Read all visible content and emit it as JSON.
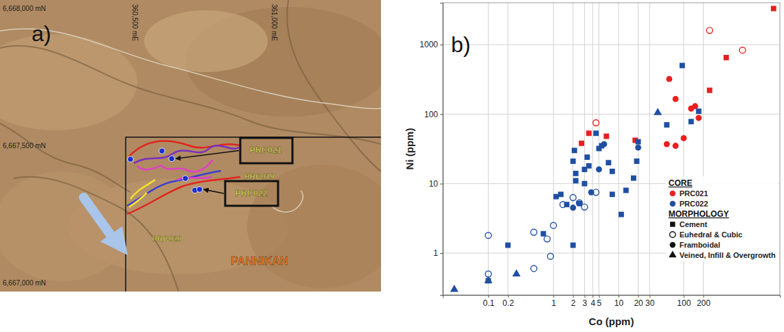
{
  "map": {
    "panel_label": "a)",
    "xlim": [
      360015,
      361382
    ],
    "ylim": [
      6666968,
      6668030
    ],
    "easting_labels": [
      {
        "value": 360500,
        "label": "360,500 mE"
      },
      {
        "value": 361000,
        "label": "361,000 mE"
      }
    ],
    "northing_labels": [
      {
        "value": 6668000,
        "label": "6,668,000 mN"
      },
      {
        "value": 6667500,
        "label": "6,667,500 mN"
      },
      {
        "value": 6667000,
        "label": "6,667,000 mN"
      }
    ],
    "boundary_corner": {
      "easting": 360466,
      "northing": 6667530
    },
    "collars": [
      {
        "easting": 360596,
        "northing": 6667480
      },
      {
        "easting": 360483,
        "northing": 6667450
      },
      {
        "easting": 360631,
        "northing": 6667452
      },
      {
        "easting": 360680,
        "northing": 6667380
      },
      {
        "easting": 360714,
        "northing": 6667337
      },
      {
        "easting": 360731,
        "northing": 6667340
      }
    ],
    "labels": [
      "PRC021",
      "PRC019",
      "PRC022",
      "PRC020",
      "PANNIKAN"
    ]
  },
  "chart_data": {
    "type": "scatter",
    "panel_label": "b)",
    "xlabel": "Co (ppm)",
    "ylabel": "Ni (ppm)",
    "log": true,
    "grid": true,
    "legend": "bottom-right",
    "xlim": [
      0.02,
      3000
    ],
    "ylim": [
      0.25,
      4000
    ],
    "xticks": [
      0.1,
      0.2,
      1,
      2,
      3,
      4,
      5,
      10,
      20,
      30,
      100,
      200
    ],
    "yticks": [
      1,
      10,
      100,
      1000
    ],
    "legend_groups": [
      {
        "title": "CORE",
        "items": [
          {
            "name": "PRC021",
            "color": "#e8201f"
          },
          {
            "name": "PRC022",
            "color": "#1f4fa3"
          }
        ]
      },
      {
        "title": "MORPHOLOGY",
        "items": [
          {
            "name": "Cement",
            "marker": "square"
          },
          {
            "name": "Euhedral & Cubic",
            "marker": "circle-open"
          },
          {
            "name": "Framboidal",
            "marker": "circle"
          },
          {
            "name": "Veined, Infill & Overgrowth",
            "marker": "triangle"
          }
        ]
      }
    ],
    "series": [
      {
        "color": "#e8201f",
        "marker": "square",
        "x": [
          2.7,
          3.5,
          6.5,
          18,
          250,
          450,
          2400
        ],
        "values": [
          38,
          53,
          48,
          42,
          220,
          650,
          3300
        ]
      },
      {
        "color": "#e8201f",
        "marker": "circle-open",
        "x": [
          4.5,
          250,
          800
        ],
        "values": [
          75,
          1600,
          830
        ]
      },
      {
        "color": "#e8201f",
        "marker": "circle",
        "x": [
          60,
          75,
          55,
          75,
          100,
          130,
          150,
          170
        ],
        "values": [
          320,
          165,
          37,
          35,
          45,
          120,
          130,
          88
        ]
      },
      {
        "color": "#1f4fa3",
        "marker": "square",
        "x": [
          0.1,
          0.2,
          0.7,
          1.1,
          1.3,
          1.6,
          2,
          2,
          2.1,
          2.2,
          2.2,
          2.5,
          3,
          3,
          3.3,
          3.5,
          4.5,
          5,
          5.5,
          7,
          8,
          8,
          11,
          13,
          17,
          19,
          20,
          55,
          95,
          130,
          170
        ],
        "values": [
          0.4,
          1.3,
          1.9,
          6.5,
          7,
          5,
          21,
          1.3,
          30,
          14,
          11,
          5.2,
          10,
          16,
          24,
          18,
          53,
          32,
          35,
          20,
          15,
          7,
          3.6,
          8,
          12,
          21,
          40,
          70,
          500,
          78,
          110
        ]
      },
      {
        "color": "#1f4fa3",
        "marker": "circle-open",
        "x": [
          0.1,
          0.1,
          0.5,
          0.5,
          0.8,
          0.9,
          1,
          1.4,
          2,
          2.5,
          3,
          4.5
        ],
        "values": [
          1.8,
          0.5,
          2,
          0.6,
          1.6,
          0.9,
          2.5,
          5,
          6.3,
          5.3,
          4.6,
          7.5
        ]
      },
      {
        "color": "#1f4fa3",
        "marker": "circle",
        "x": [
          2,
          3.8,
          5,
          6,
          20
        ],
        "values": [
          4.5,
          7.5,
          16,
          37,
          33
        ]
      },
      {
        "color": "#1f4fa3",
        "marker": "triangle",
        "x": [
          0.03,
          0.1,
          0.27,
          40
        ],
        "values": [
          0.3,
          0.4,
          0.5,
          105
        ]
      }
    ]
  }
}
